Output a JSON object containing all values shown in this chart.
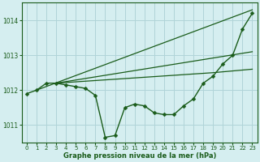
{
  "title": "Graphe pression niveau de la mer (hPa)",
  "background_color": "#d5eef0",
  "grid_color": "#b0d4d8",
  "line_color": "#1a5c1a",
  "xlim": [
    -0.5,
    23.5
  ],
  "ylim": [
    1010.5,
    1014.5
  ],
  "yticks": [
    1011,
    1012,
    1013,
    1014
  ],
  "xticks": [
    0,
    1,
    2,
    3,
    4,
    5,
    6,
    7,
    8,
    9,
    10,
    11,
    12,
    13,
    14,
    15,
    16,
    17,
    18,
    19,
    20,
    21,
    22,
    23
  ],
  "series": [
    {
      "x": [
        0,
        1,
        2,
        3,
        4,
        5,
        6,
        7,
        8,
        9,
        10,
        11,
        12,
        13,
        14,
        15,
        16,
        17,
        18,
        19,
        20,
        21,
        22,
        23
      ],
      "y": [
        1011.9,
        1012.0,
        1012.2,
        1012.2,
        1012.15,
        1012.1,
        1012.05,
        1011.85,
        1010.65,
        1010.7,
        1011.5,
        1011.6,
        1011.55,
        1011.35,
        1011.3,
        1011.3,
        1011.55,
        1011.75,
        1012.2,
        1012.4,
        1012.75,
        1013.0,
        1013.75,
        1014.2
      ],
      "has_markers": true,
      "linewidth": 1.0,
      "markersize": 2.5
    },
    {
      "x": [
        1,
        23
      ],
      "y": [
        1012.0,
        1014.3
      ],
      "has_markers": false,
      "linewidth": 0.9
    },
    {
      "comment": "middle envelope: from (3,1012.2) to (23,1013.1)",
      "x": [
        3,
        23
      ],
      "y": [
        1012.2,
        1013.1
      ],
      "has_markers": false,
      "linewidth": 0.9
    },
    {
      "comment": "lower envelope: from (3,1012.2) to (19,1012.5) to (23, 1012.6)",
      "x": [
        3,
        19,
        23
      ],
      "y": [
        1012.2,
        1012.5,
        1012.6
      ],
      "has_markers": false,
      "linewidth": 0.9
    }
  ]
}
